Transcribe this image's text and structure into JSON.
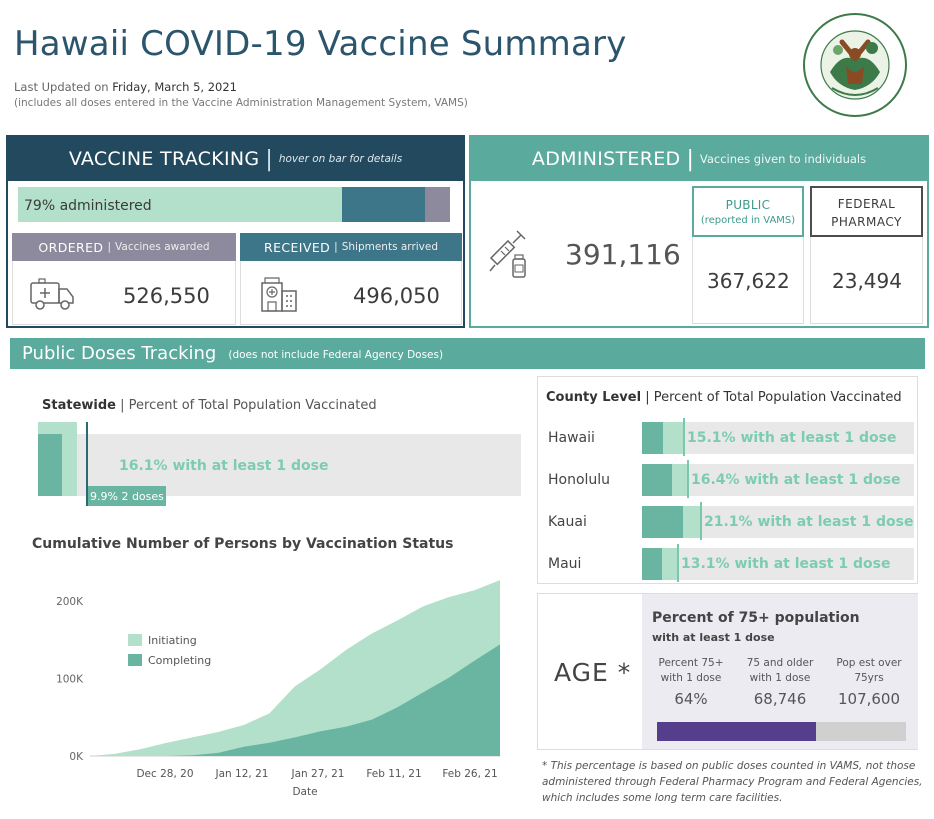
{
  "header": {
    "title": "Hawaii COVID-19 Vaccine Summary",
    "updated_prefix": "Last Updated on",
    "updated_date": "Friday, March 5, 2021",
    "includes": "(includes all doses entered in the Vaccine Administration Management System, VAMS)",
    "logo_text": "HAWAII STATE DEPARTMENT OF HEALTH"
  },
  "vaccine_tracking": {
    "title": "VACCINE TRACKING",
    "subtitle": "hover on bar for details",
    "bar_label": "79% administered",
    "pct_administered": 0.79,
    "pct_received": 0.942,
    "ordered_label": "ORDERED",
    "ordered_desc": "Vaccines awarded",
    "ordered_value": "526,550",
    "received_label": "RECEIVED",
    "received_desc": "Shipments arrived",
    "received_value": "496,050"
  },
  "administered": {
    "title": "ADMINISTERED",
    "subtitle": "Vaccines given to individuals",
    "total": "391,116",
    "public_label": "PUBLIC",
    "public_note": "(reported in VAMS)",
    "public_value": "367,622",
    "federal_label_1": "FEDERAL",
    "federal_label_2": "PHARMACY",
    "federal_value": "23,494"
  },
  "public_doses": {
    "title": "Public Doses Tracking",
    "note": "(does not include Federal Agency Doses)"
  },
  "statewide": {
    "title": "Statewide",
    "desc": "Percent of Total Population Vaccinated",
    "one_dose_pct": 16.1,
    "two_dose_pct": 9.9,
    "one_dose_label": "16.1% with at least 1 dose",
    "two_dose_label": "9.9% 2 doses"
  },
  "county": {
    "title": "County Level",
    "desc": "Percent of Total Population Vaccinated",
    "rows": [
      {
        "name": "Hawaii",
        "one": 15.1,
        "two": 7.5,
        "label": "15.1% with at least 1 dose"
      },
      {
        "name": "Honolulu",
        "one": 16.4,
        "two": 10.5,
        "label": "16.4% with at least 1 dose"
      },
      {
        "name": "Kauai",
        "one": 21.1,
        "two": 14.5,
        "label": "21.1% with at least 1 dose"
      },
      {
        "name": "Maui",
        "one": 13.1,
        "two": 7.0,
        "label": "13.1% with at least 1 dose"
      }
    ]
  },
  "age": {
    "label": "AGE *",
    "title": "Percent of 75+ population",
    "subtitle": "with at least 1 dose",
    "col1_head_1": "Percent 75+",
    "col1_head_2": "with 1 dose",
    "col1_value": "64%",
    "col2_head_1": "75 and older",
    "col2_head_2": "with 1 dose",
    "col2_value": "68,746",
    "col3_head_1": "Pop est over",
    "col3_head_2": "75yrs",
    "col3_value": "107,600",
    "pct": 0.64
  },
  "footnote": "* This percentage is based on public doses counted in VAMS, not those administered through Federal Pharmacy Program and Federal Agencies, which includes some long term care facilities.",
  "colors": {
    "navy": "#23495e",
    "teal": "#5aaa9d",
    "initiating": "#b2e0cb",
    "completing": "#69b5a2",
    "received": "#3d7589",
    "ordered": "#8c8a9c",
    "age_bar": "#553f8c"
  },
  "chart_data": {
    "type": "area",
    "title": "Cumulative Number of Persons by Vaccination Status",
    "xlabel": "Date",
    "ylabel": "",
    "x_ticks": [
      "Dec 28, 20",
      "Jan 12, 21",
      "Jan 27, 21",
      "Feb 11, 21",
      "Feb 26, 21"
    ],
    "y_ticks": [
      "0K",
      "100K",
      "200K"
    ],
    "ylim": [
      0,
      240000
    ],
    "legend": "top-left",
    "x": [
      "2020-12-15",
      "2020-12-20",
      "2020-12-25",
      "2020-12-30",
      "2021-01-04",
      "2021-01-09",
      "2021-01-14",
      "2021-01-19",
      "2021-01-24",
      "2021-01-29",
      "2021-02-03",
      "2021-02-08",
      "2021-02-13",
      "2021-02-18",
      "2021-02-23",
      "2021-02-28",
      "2021-03-04"
    ],
    "series": [
      {
        "name": "Initiating",
        "values": [
          0,
          3000,
          9000,
          17000,
          24000,
          31000,
          40000,
          55000,
          90000,
          112000,
          137000,
          158000,
          175000,
          193000,
          205000,
          214000,
          227000
        ]
      },
      {
        "name": "Completing",
        "values": [
          0,
          0,
          0,
          0,
          1000,
          4000,
          12000,
          17000,
          24000,
          32000,
          38000,
          47000,
          63000,
          82000,
          101000,
          123000,
          144000
        ]
      }
    ]
  }
}
